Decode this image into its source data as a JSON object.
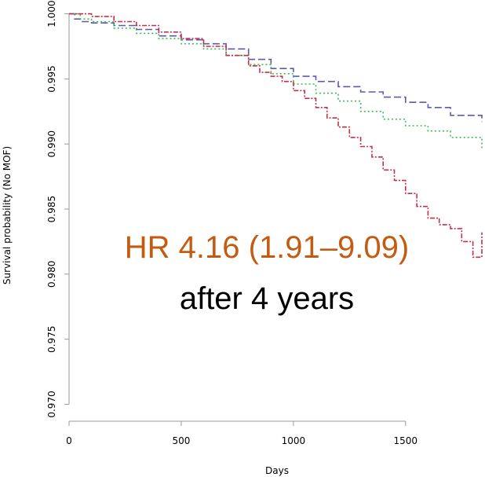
{
  "chart_data": {
    "type": "line",
    "title": "",
    "xlabel": "Days",
    "ylabel": "Survival probability (No MOF)",
    "xlim": [
      0,
      1840
    ],
    "ylim": [
      0.9687,
      1.0007
    ],
    "xticks": [
      0,
      500,
      1000,
      1500
    ],
    "xtick_labels": [
      "0",
      "500",
      "1000",
      "1500"
    ],
    "yticks": [
      0.97,
      0.975,
      0.98,
      0.985,
      0.99,
      0.995,
      1.0
    ],
    "ytick_labels": [
      "0.970",
      "0.975",
      "0.980",
      "0.985",
      "0.990",
      "0.995",
      "1.000"
    ],
    "grid": false,
    "series": [
      {
        "color": "#5b5ba8",
        "dash": "9,4",
        "x": [
          0,
          25,
          50,
          100,
          200,
          300,
          400,
          500,
          600,
          700,
          800,
          900,
          1000,
          1100,
          1200,
          1300,
          1400,
          1500,
          1600,
          1700,
          1840
        ],
        "y": [
          1.0,
          0.9996,
          0.9994,
          0.9993,
          0.9991,
          0.9988,
          0.9983,
          0.998,
          0.9977,
          0.9973,
          0.9965,
          0.9958,
          0.9952,
          0.9948,
          0.9944,
          0.994,
          0.9936,
          0.9932,
          0.9928,
          0.9922,
          0.9917
        ]
      },
      {
        "color": "#3dbb5a",
        "dash": "2,3",
        "x": [
          0,
          50,
          100,
          200,
          300,
          400,
          500,
          600,
          700,
          800,
          900,
          1000,
          1100,
          1200,
          1300,
          1400,
          1500,
          1600,
          1700,
          1840
        ],
        "y": [
          1.0,
          0.9996,
          0.9994,
          0.9989,
          0.9985,
          0.9981,
          0.9977,
          0.9973,
          0.9968,
          0.9961,
          0.9954,
          0.9946,
          0.9939,
          0.9933,
          0.9925,
          0.9919,
          0.9914,
          0.991,
          0.9905,
          0.9897
        ]
      },
      {
        "color": "#c4304a",
        "dash": "6,2,2,2",
        "x": [
          0,
          100,
          200,
          300,
          400,
          500,
          600,
          700,
          800,
          850,
          900,
          950,
          1000,
          1050,
          1100,
          1150,
          1200,
          1250,
          1300,
          1350,
          1400,
          1450,
          1500,
          1550,
          1600,
          1650,
          1700,
          1750,
          1800,
          1840
        ],
        "y": [
          1.0,
          0.9998,
          0.9994,
          0.9991,
          0.9986,
          0.9981,
          0.9975,
          0.9968,
          0.996,
          0.9955,
          0.9952,
          0.9948,
          0.9941,
          0.9935,
          0.9928,
          0.992,
          0.9913,
          0.9905,
          0.9898,
          0.989,
          0.988,
          0.9872,
          0.9862,
          0.9852,
          0.9843,
          0.9838,
          0.9835,
          0.9825,
          0.9813,
          0.9832
        ]
      }
    ],
    "annotations": [
      {
        "text": "HR 4.16 (1.91–9.09)",
        "color": "#c55a11"
      },
      {
        "text": "after 4 years",
        "color": "#000000"
      }
    ]
  }
}
